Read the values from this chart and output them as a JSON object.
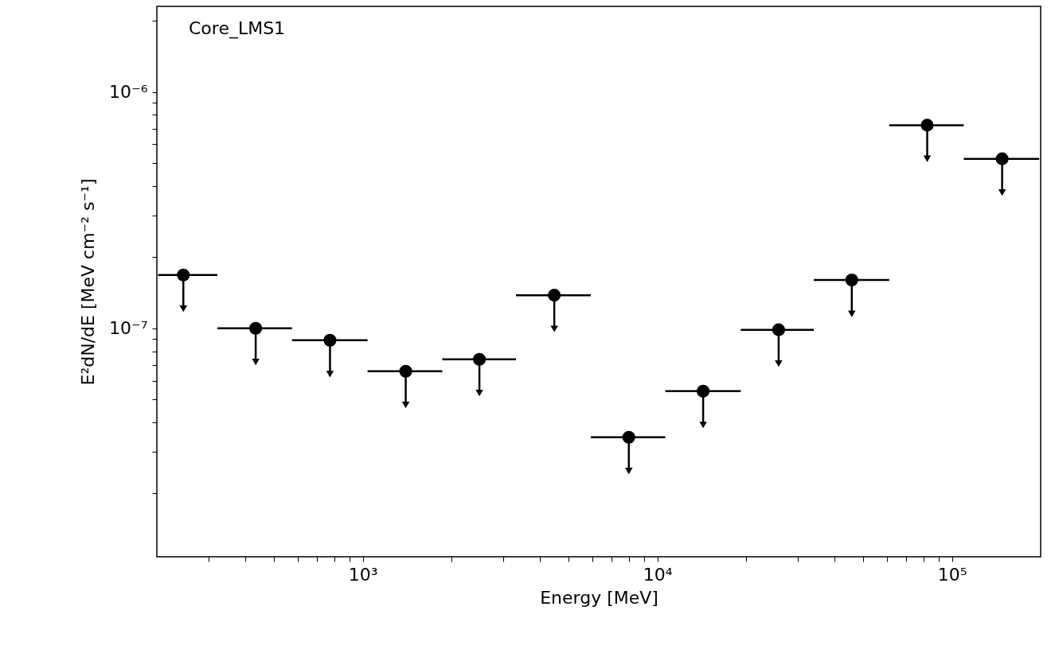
{
  "chart_data": {
    "type": "scatter",
    "xlabel": "Energy [MeV]",
    "ylabel": "E²dN/dE [MeV cm⁻² s⁻¹]",
    "annotations": [
      "Core_LMS1"
    ],
    "x": [
      246,
      433,
      774,
      1399,
      2488,
      4467,
      8000,
      14300,
      25800,
      45700,
      82400,
      148000
    ],
    "series": [
      {
        "color": "#000000",
        "values": [
          1.68e-07,
          1e-07,
          8.9e-08,
          6.58e-08,
          7.39e-08,
          1.38e-07,
          3.46e-08,
          5.42e-08,
          9.85e-08,
          1.6e-07,
          7.23e-07,
          5.21e-07
        ],
        "errors": [
          [
            1.21e-07,
            1.68e-07
          ],
          [
            7.2e-08,
            1e-07
          ],
          [
            6.4e-08,
            8.9e-08
          ],
          [
            4.74e-08,
            6.58e-08
          ],
          [
            5.32e-08,
            7.39e-08
          ],
          [
            9.94e-08,
            1.38e-07
          ],
          [
            2.49e-08,
            3.46e-08
          ],
          [
            3.9e-08,
            5.42e-08
          ],
          [
            7.09e-08,
            9.85e-08
          ],
          [
            1.15e-07,
            1.6e-07
          ],
          [
            5.21e-07,
            7.23e-07
          ],
          [
            3.75e-07,
            5.21e-07
          ]
        ],
        "xerrors": [
          [
            202,
            321
          ],
          [
            321,
            575
          ],
          [
            575,
            1038
          ],
          [
            1038,
            1862
          ],
          [
            1862,
            3311
          ],
          [
            3311,
            5942
          ],
          [
            5942,
            10640
          ],
          [
            10640,
            19190
          ],
          [
            19190,
            33960
          ],
          [
            33960,
            61230
          ],
          [
            61230,
            109600
          ],
          [
            109600,
            197700
          ]
        ]
      }
    ],
    "marker": "circle",
    "log": "xy",
    "xlim": [
      200,
      200000
    ],
    "ylim": [
      1.08e-08,
      2.3e-06
    ],
    "xticks": [
      {
        "value": 300,
        "label": null
      },
      {
        "value": 400,
        "label": null
      },
      {
        "value": 500,
        "label": null
      },
      {
        "value": 600,
        "label": null
      },
      {
        "value": 700,
        "label": null
      },
      {
        "value": 800,
        "label": null
      },
      {
        "value": 900,
        "label": null
      },
      {
        "value": 1000,
        "label": "10³"
      },
      {
        "value": 2000,
        "label": null
      },
      {
        "value": 3000,
        "label": null
      },
      {
        "value": 4000,
        "label": null
      },
      {
        "value": 5000,
        "label": null
      },
      {
        "value": 6000,
        "label": null
      },
      {
        "value": 7000,
        "label": null
      },
      {
        "value": 8000,
        "label": null
      },
      {
        "value": 9000,
        "label": null
      },
      {
        "value": 10000,
        "label": "10⁴"
      },
      {
        "value": 20000,
        "label": null
      },
      {
        "value": 30000,
        "label": null
      },
      {
        "value": 40000,
        "label": null
      },
      {
        "value": 50000,
        "label": null
      },
      {
        "value": 60000,
        "label": null
      },
      {
        "value": 70000,
        "label": null
      },
      {
        "value": 80000,
        "label": null
      },
      {
        "value": 90000,
        "label": null
      },
      {
        "value": 100000,
        "label": "10⁵"
      }
    ],
    "yticks": [
      {
        "value": 2e-08,
        "label": null
      },
      {
        "value": 3e-08,
        "label": null
      },
      {
        "value": 4e-08,
        "label": null
      },
      {
        "value": 5e-08,
        "label": null
      },
      {
        "value": 6e-08,
        "label": null
      },
      {
        "value": 7e-08,
        "label": null
      },
      {
        "value": 8e-08,
        "label": null
      },
      {
        "value": 9e-08,
        "label": null
      },
      {
        "value": 1e-07,
        "label": "10⁻⁷"
      },
      {
        "value": 2e-07,
        "label": null
      },
      {
        "value": 3e-07,
        "label": null
      },
      {
        "value": 4e-07,
        "label": null
      },
      {
        "value": 5e-07,
        "label": null
      },
      {
        "value": 6e-07,
        "label": null
      },
      {
        "value": 7e-07,
        "label": null
      },
      {
        "value": 8e-07,
        "label": null
      },
      {
        "value": 9e-07,
        "label": null
      },
      {
        "value": 1e-06,
        "label": "10⁻⁶"
      },
      {
        "value": 2e-06,
        "label": null
      }
    ]
  }
}
